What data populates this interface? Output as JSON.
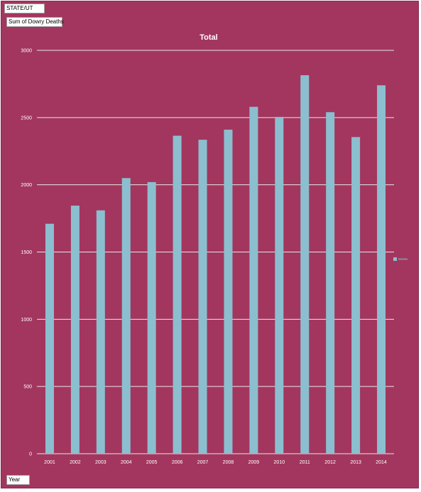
{
  "pivot_fields": {
    "filter_label": "STATE/UT",
    "values_label": "Sum of Dowry Deaths",
    "axis_label": "Year"
  },
  "colors": {
    "background": "#a3365e",
    "bar": "#8bbfcf",
    "gridline": "#e6e6e6",
    "text": "#ffffff"
  },
  "chart_data": {
    "type": "bar",
    "title": "Total",
    "categories": [
      "2001",
      "2002",
      "2003",
      "2004",
      "2005",
      "2006",
      "2007",
      "2008",
      "2009",
      "2010",
      "2011",
      "2012",
      "2013",
      "2014"
    ],
    "series": [
      {
        "values": [
          1710,
          1845,
          1810,
          2050,
          2020,
          2365,
          2335,
          2410,
          2580,
          2505,
          2815,
          2540,
          2355,
          2740
        ]
      }
    ],
    "ylim": [
      0,
      3000
    ],
    "yticks": [
      0,
      500,
      1000,
      1500,
      2000,
      2500,
      3000
    ],
    "grid": true,
    "legend": "right"
  }
}
